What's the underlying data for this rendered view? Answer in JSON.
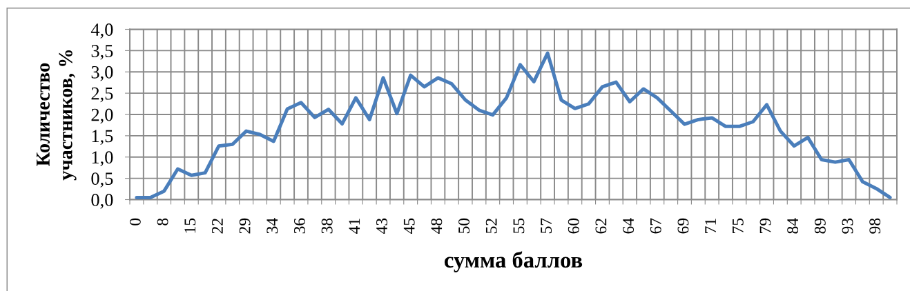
{
  "chart_data": {
    "type": "line",
    "xlabel": "сумма баллов",
    "ylabel": "Количество\nучастников, %",
    "categories": [
      "0",
      null,
      "8",
      null,
      "15",
      null,
      "22",
      null,
      "29",
      null,
      "34",
      null,
      "36",
      null,
      "38",
      null,
      "41",
      null,
      "43",
      null,
      "45",
      null,
      "48",
      null,
      "50",
      null,
      "52",
      null,
      "55",
      null,
      "57",
      null,
      "60",
      null,
      "62",
      null,
      "64",
      null,
      "67",
      null,
      "69",
      null,
      "71",
      null,
      "75",
      null,
      "79",
      null,
      "84",
      null,
      "89",
      null,
      "93",
      null,
      "98",
      null
    ],
    "series": [
      {
        "color": "#4a7ebb",
        "values": [
          0.05,
          0.05,
          0.2,
          0.72,
          0.57,
          0.63,
          1.26,
          1.3,
          1.61,
          1.53,
          1.37,
          2.13,
          2.28,
          1.93,
          2.12,
          1.78,
          2.39,
          1.88,
          2.86,
          2.02,
          2.92,
          2.65,
          2.86,
          2.72,
          2.34,
          2.1,
          1.99,
          2.39,
          3.17,
          2.77,
          3.44,
          2.34,
          2.14,
          2.25,
          2.65,
          2.76,
          2.3,
          2.6,
          2.39,
          2.08,
          1.77,
          1.88,
          1.92,
          1.72,
          1.72,
          1.83,
          2.23,
          1.61,
          1.26,
          1.46,
          0.94,
          0.88,
          0.94,
          0.42,
          0.26,
          0.05
        ]
      }
    ],
    "ylim": [
      0,
      4
    ],
    "yticks": [
      {
        "value": 0,
        "label": "0,0"
      },
      {
        "value": 0.5,
        "label": "0,5"
      },
      {
        "value": 1,
        "label": "1,0"
      },
      {
        "value": 1.5,
        "label": "1,5"
      },
      {
        "value": 2,
        "label": "2,0"
      },
      {
        "value": 2.5,
        "label": "2,5"
      },
      {
        "value": 3,
        "label": "3,0"
      },
      {
        "value": 3.5,
        "label": "3,5"
      },
      {
        "value": 4,
        "label": "4,0"
      }
    ],
    "grid": true,
    "line_style": "solid"
  }
}
